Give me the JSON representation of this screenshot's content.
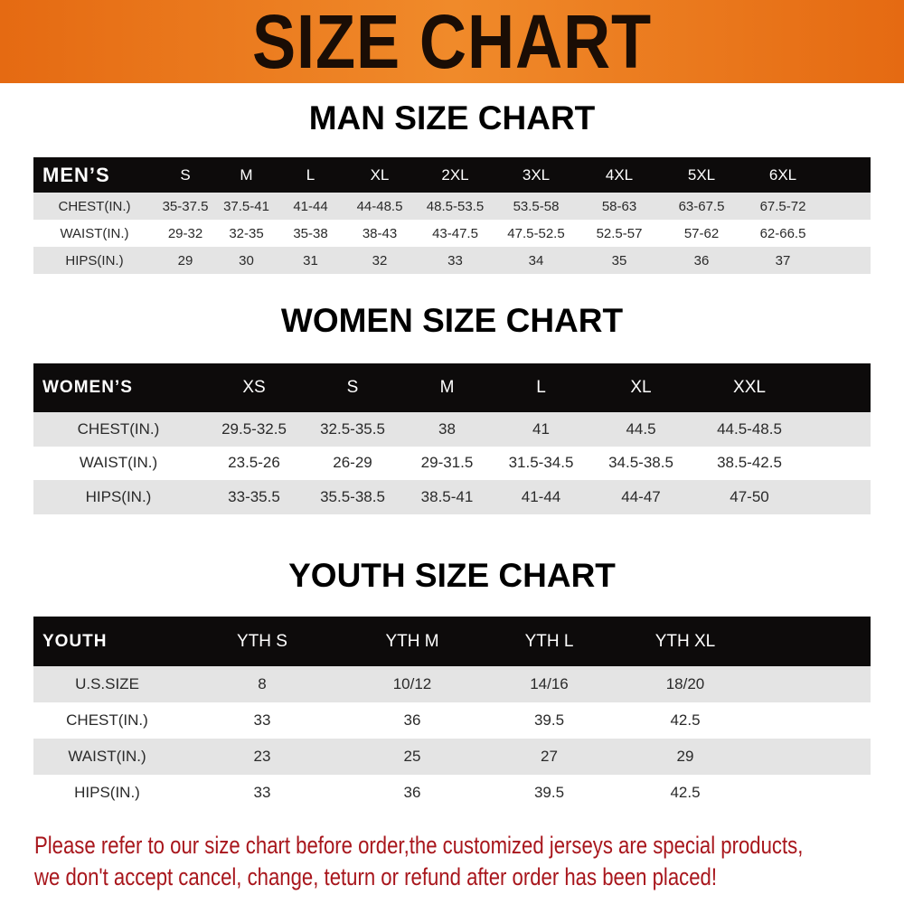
{
  "banner_title": "SIZE CHART",
  "colors": {
    "banner": "#f08a2a",
    "header_bg": "#0d0b0b",
    "row_shade": "#e4e4e4",
    "note_text": "#a8161c"
  },
  "men": {
    "title": "MAN SIZE CHART",
    "header": [
      "MEN’S",
      "S",
      "M",
      "L",
      "XL",
      "2XL",
      "3XL",
      "4XL",
      "5XL",
      "6XL"
    ],
    "rows": [
      [
        "CHEST(IN.)",
        "35-37.5",
        "37.5-41",
        "41-44",
        "44-48.5",
        "48.5-53.5",
        "53.5-58",
        "58-63",
        "63-67.5",
        "67.5-72"
      ],
      [
        "WAIST(IN.)",
        "29-32",
        "32-35",
        "35-38",
        "38-43",
        "43-47.5",
        "47.5-52.5",
        "52.5-57",
        "57-62",
        "62-66.5"
      ],
      [
        "HIPS(IN.)",
        "29",
        "30",
        "31",
        "32",
        "33",
        "34",
        "35",
        "36",
        "37"
      ]
    ]
  },
  "women": {
    "title": "WOMEN SIZE CHART",
    "header": [
      "WOMEN’S",
      "XS",
      "S",
      "M",
      "L",
      "XL",
      "XXL"
    ],
    "rows": [
      [
        "CHEST(IN.)",
        "29.5-32.5",
        "32.5-35.5",
        "38",
        "41",
        "44.5",
        "44.5-48.5"
      ],
      [
        "WAIST(IN.)",
        "23.5-26",
        "26-29",
        "29-31.5",
        "31.5-34.5",
        "34.5-38.5",
        "38.5-42.5"
      ],
      [
        "HIPS(IN.)",
        "33-35.5",
        "35.5-38.5",
        "38.5-41",
        "41-44",
        "44-47",
        "47-50"
      ]
    ]
  },
  "youth": {
    "title": "YOUTH SIZE CHART",
    "header": [
      "YOUTH",
      "YTH S",
      "YTH M",
      "YTH L",
      "YTH XL"
    ],
    "rows": [
      [
        "U.S.SIZE",
        "8",
        "10/12",
        "14/16",
        "18/20"
      ],
      [
        "CHEST(IN.)",
        "33",
        "36",
        "39.5",
        "42.5"
      ],
      [
        "WAIST(IN.)",
        "23",
        "25",
        "27",
        "29"
      ],
      [
        "HIPS(IN.)",
        "33",
        "36",
        "39.5",
        "42.5"
      ]
    ]
  },
  "note": {
    "line1": "Please refer to our size chart before order,the customized jerseys are special products,",
    "line2": "we don't accept cancel, change, teturn or refund after order has been placed!"
  }
}
